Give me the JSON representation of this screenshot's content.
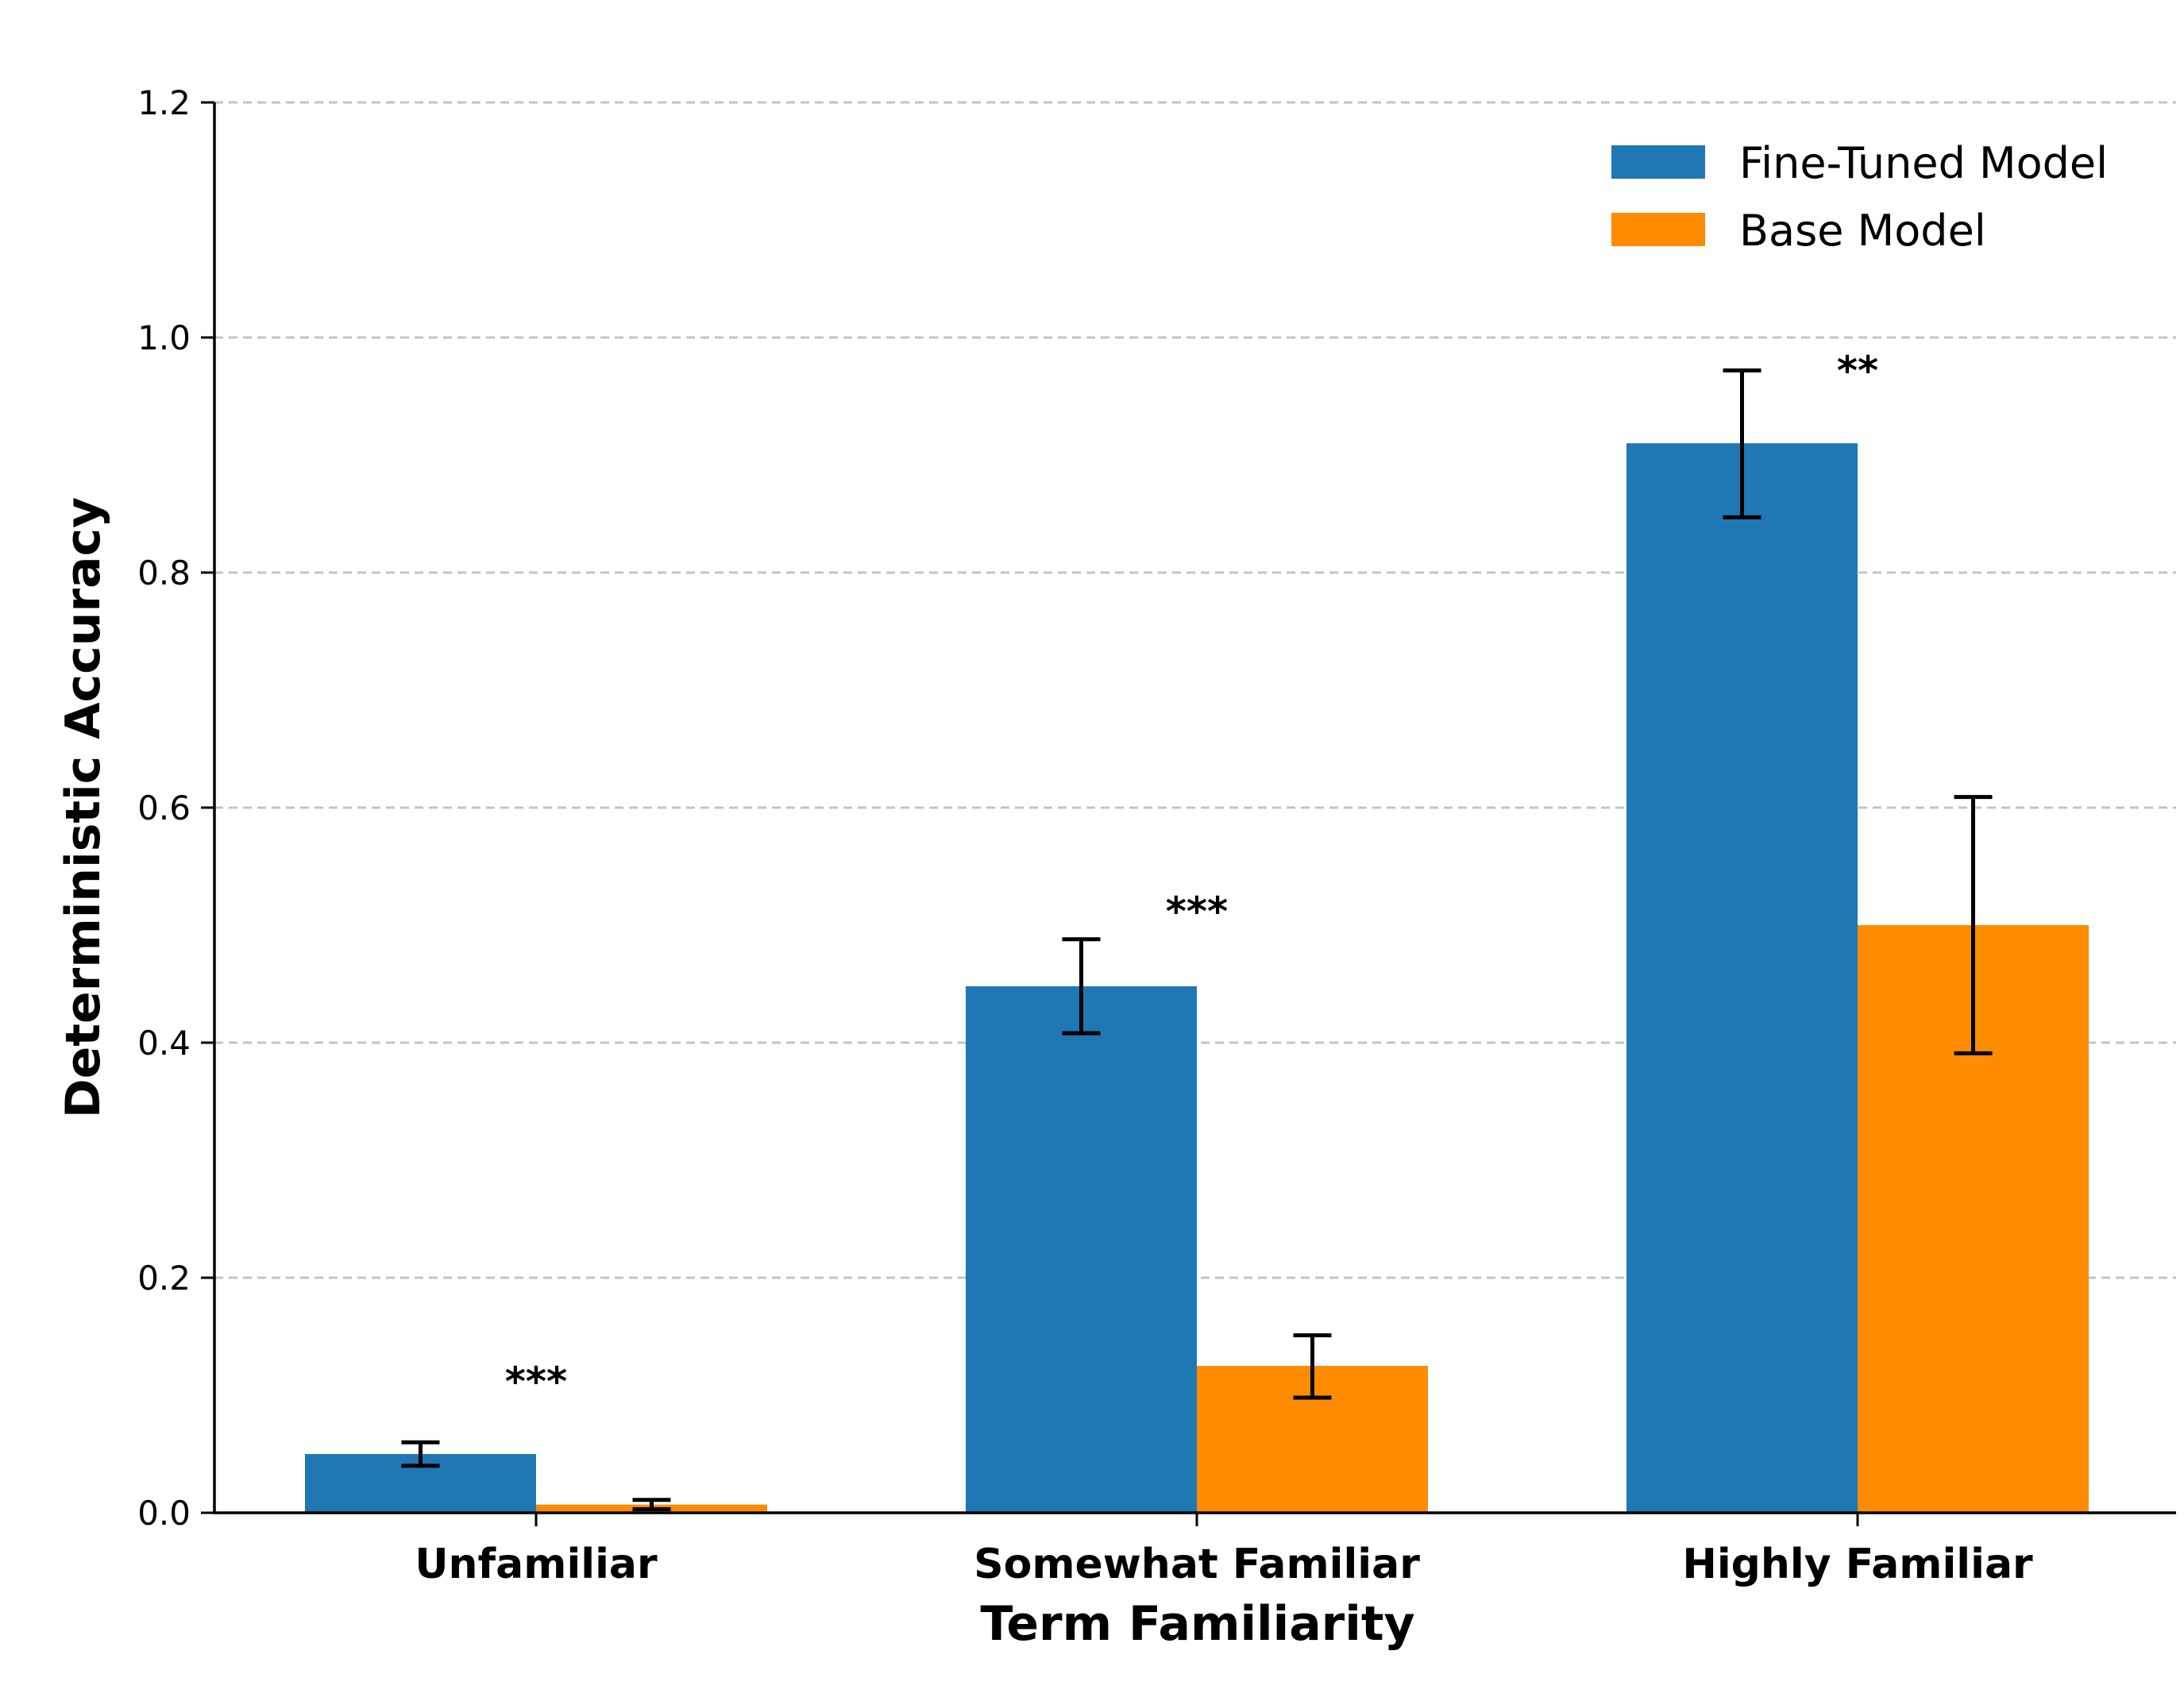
{
  "chart_data": {
    "type": "bar",
    "title": "",
    "xlabel": "Term Familiarity",
    "ylabel": "Deterministic Accuracy",
    "ylim": [
      0,
      1.2
    ],
    "yticks": [
      "0.0",
      "0.2",
      "0.4",
      "0.6",
      "0.8",
      "1.0",
      "1.2"
    ],
    "ytick_values": [
      0,
      0.2,
      0.4,
      0.6,
      0.8,
      1.0,
      1.2
    ],
    "grid": "y-dashed",
    "legend_position": "top-right",
    "categories": [
      "Unfamiliar",
      "Somewhat Familiar",
      "Highly Familiar"
    ],
    "series": [
      {
        "name": "Fine-Tuned Model",
        "color": "#1f77b4",
        "values": [
          0.05,
          0.448,
          0.91
        ],
        "err_low": [
          0.04,
          0.408,
          0.847
        ],
        "err_high": [
          0.06,
          0.488,
          0.972
        ]
      },
      {
        "name": "Base Model",
        "color": "#ff8c00",
        "values": [
          0.007,
          0.125,
          0.5
        ],
        "err_low": [
          0.003,
          0.098,
          0.391
        ],
        "err_high": [
          0.011,
          0.151,
          0.609
        ]
      }
    ],
    "significance": [
      "***",
      "***",
      "**"
    ],
    "significance_y": [
      0.115,
      0.515,
      0.975
    ]
  }
}
